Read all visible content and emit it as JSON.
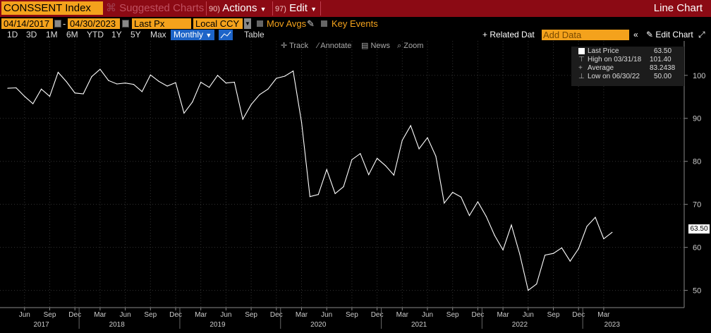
{
  "header": {
    "ticker": "CONSSENT Index",
    "suggested_charts": "Suggested Charts",
    "suggested_num": "",
    "actions_num": "90)",
    "actions": "Actions",
    "edit_num": "97)",
    "edit": "Edit",
    "title": "Line Chart"
  },
  "controls": {
    "start_date": "04/14/2017",
    "end_date": "04/30/2023",
    "field": "Last Px",
    "currency": "Local CCY",
    "mov_avgs": "Mov Avgs",
    "key_events": "Key Events",
    "timeframes": [
      "1D",
      "3D",
      "1M",
      "6M",
      "YTD",
      "1Y",
      "5Y",
      "Max"
    ],
    "frequency": "Monthly",
    "table": "Table",
    "related_data": "Related Dat",
    "add_data_placeholder": "Add Data",
    "edit_chart": "Edit Chart"
  },
  "toolbar": {
    "track": "Track",
    "annotate": "Annotate",
    "news": "News",
    "zoom": "Zoom"
  },
  "legend": {
    "last_price_label": "Last Price",
    "last_price_value": "63.50",
    "high_label": "High on 03/31/18",
    "high_value": "101.40",
    "average_label": "Average",
    "average_value": "83.2438",
    "low_label": "Low on 06/30/22",
    "low_value": "50.00"
  },
  "price_tag": "63.50",
  "colors": {
    "background": "#000000",
    "header_red": "#8b0a14",
    "accent_orange": "#f4a21c",
    "selected_blue": "#1d64c8",
    "line": "#ffffff"
  },
  "chart_data": {
    "type": "line",
    "title": "",
    "xlabel": "",
    "ylabel": "",
    "ylim": [
      46,
      108
    ],
    "yticks": [
      50,
      60,
      70,
      80,
      90,
      100
    ],
    "xticks": [
      {
        "label": "Jun",
        "idx": 2
      },
      {
        "label": "Sep",
        "idx": 5
      },
      {
        "label": "Dec",
        "idx": 8
      },
      {
        "label": "Mar",
        "idx": 11
      },
      {
        "label": "Jun",
        "idx": 14
      },
      {
        "label": "Sep",
        "idx": 17
      },
      {
        "label": "Dec",
        "idx": 20
      },
      {
        "label": "Mar",
        "idx": 23
      },
      {
        "label": "Jun",
        "idx": 26
      },
      {
        "label": "Sep",
        "idx": 29
      },
      {
        "label": "Dec",
        "idx": 32
      },
      {
        "label": "Mar",
        "idx": 35
      },
      {
        "label": "Jun",
        "idx": 38
      },
      {
        "label": "Sep",
        "idx": 41
      },
      {
        "label": "Dec",
        "idx": 44
      },
      {
        "label": "Mar",
        "idx": 47
      },
      {
        "label": "Jun",
        "idx": 50
      },
      {
        "label": "Sep",
        "idx": 53
      },
      {
        "label": "Dec",
        "idx": 56
      },
      {
        "label": "Mar",
        "idx": 59
      },
      {
        "label": "Jun",
        "idx": 62
      },
      {
        "label": "Sep",
        "idx": 65
      },
      {
        "label": "Dec",
        "idx": 68
      },
      {
        "label": "Mar",
        "idx": 71
      }
    ],
    "years": [
      {
        "label": "2017",
        "idx": 4
      },
      {
        "label": "2018",
        "idx": 13
      },
      {
        "label": "2019",
        "idx": 25
      },
      {
        "label": "2020",
        "idx": 37
      },
      {
        "label": "2021",
        "idx": 49
      },
      {
        "label": "2022",
        "idx": 61
      },
      {
        "label": "2023",
        "idx": 72
      }
    ],
    "year_boundaries": [
      8.5,
      20.5,
      32.5,
      44.5,
      56.5,
      68.5
    ],
    "x": [
      "Apr 2017",
      "May 2017",
      "Jun 2017",
      "Jul 2017",
      "Aug 2017",
      "Sep 2017",
      "Oct 2017",
      "Nov 2017",
      "Dec 2017",
      "Jan 2018",
      "Feb 2018",
      "Mar 2018",
      "Apr 2018",
      "May 2018",
      "Jun 2018",
      "Jul 2018",
      "Aug 2018",
      "Sep 2018",
      "Oct 2018",
      "Nov 2018",
      "Dec 2018",
      "Jan 2019",
      "Feb 2019",
      "Mar 2019",
      "Apr 2019",
      "May 2019",
      "Jun 2019",
      "Jul 2019",
      "Aug 2019",
      "Sep 2019",
      "Oct 2019",
      "Nov 2019",
      "Dec 2019",
      "Jan 2020",
      "Feb 2020",
      "Mar 2020",
      "Apr 2020",
      "May 2020",
      "Jun 2020",
      "Jul 2020",
      "Aug 2020",
      "Sep 2020",
      "Oct 2020",
      "Nov 2020",
      "Dec 2020",
      "Jan 2021",
      "Feb 2021",
      "Mar 2021",
      "Apr 2021",
      "May 2021",
      "Jun 2021",
      "Jul 2021",
      "Aug 2021",
      "Sep 2021",
      "Oct 2021",
      "Nov 2021",
      "Dec 2021",
      "Jan 2022",
      "Feb 2022",
      "Mar 2022",
      "Apr 2022",
      "May 2022",
      "Jun 2022",
      "Jul 2022",
      "Aug 2022",
      "Sep 2022",
      "Oct 2022",
      "Nov 2022",
      "Dec 2022",
      "Jan 2023",
      "Feb 2023",
      "Mar 2023",
      "Apr 2023"
    ],
    "values": [
      97.0,
      97.1,
      95.1,
      93.4,
      96.8,
      95.1,
      100.7,
      98.5,
      95.9,
      95.7,
      99.7,
      101.4,
      98.8,
      98.0,
      98.2,
      97.9,
      96.2,
      100.1,
      98.6,
      97.5,
      98.3,
      91.2,
      93.8,
      98.4,
      97.2,
      100.0,
      98.2,
      98.4,
      89.8,
      93.2,
      95.5,
      96.8,
      99.3,
      99.8,
      101.0,
      89.1,
      71.8,
      72.3,
      78.1,
      72.5,
      74.1,
      80.4,
      81.8,
      76.9,
      80.7,
      79.0,
      76.8,
      84.9,
      88.3,
      82.9,
      85.5,
      81.2,
      70.3,
      72.8,
      71.7,
      67.4,
      70.6,
      67.2,
      62.8,
      59.4,
      65.2,
      58.4,
      50.0,
      51.5,
      58.2,
      58.6,
      59.9,
      56.8,
      59.7,
      64.9,
      67.0,
      62.0,
      63.5
    ]
  }
}
